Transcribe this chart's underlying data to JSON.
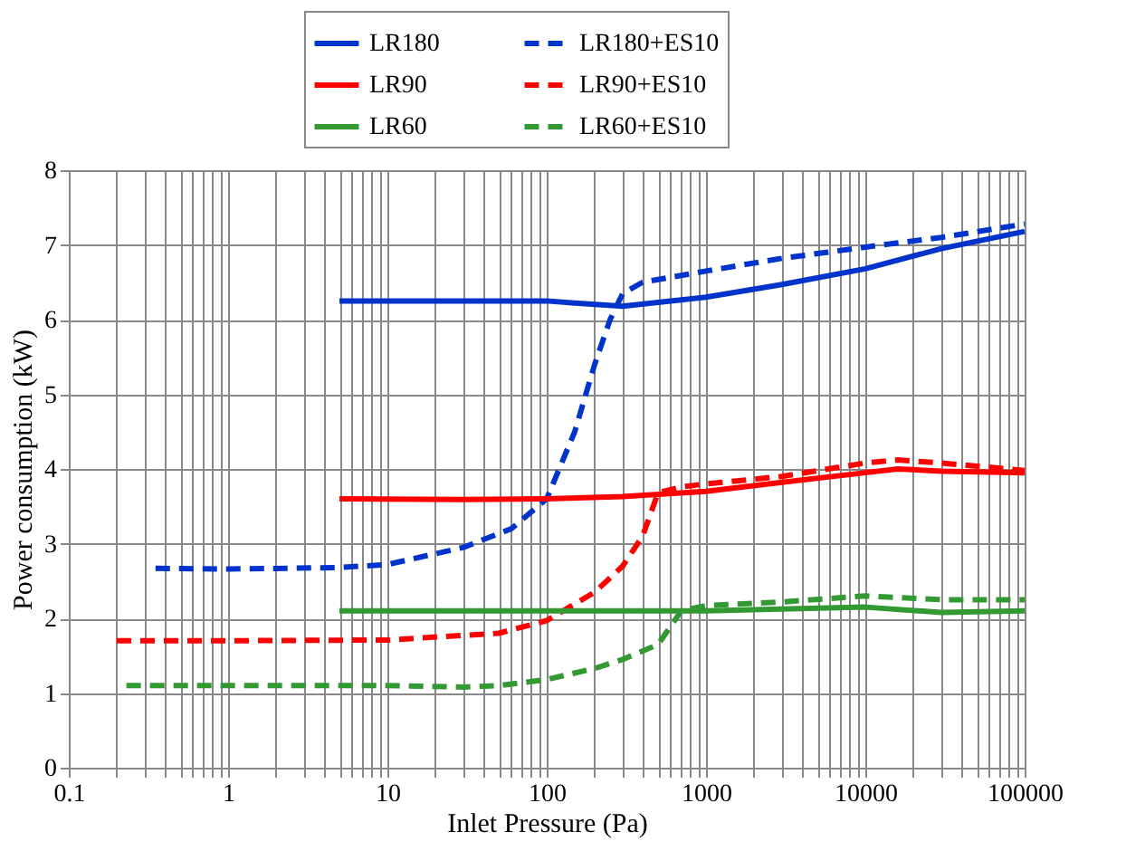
{
  "chart_data": {
    "type": "line",
    "xlabel": "Inlet Pressure (Pa)",
    "ylabel": "Power consumption (kW)",
    "log": "x",
    "grid": true,
    "legend": "top",
    "marker": "none",
    "xlim": [
      0.1,
      100000
    ],
    "ylim": [
      0,
      8
    ],
    "yticks": [
      0,
      1,
      2,
      3,
      4,
      5,
      6,
      7,
      8
    ],
    "xticks": [
      0.1,
      {
        "value": 0.2,
        "label": null
      },
      {
        "value": 0.3,
        "label": null
      },
      {
        "value": 0.4,
        "label": null
      },
      {
        "value": 0.5,
        "label": null
      },
      {
        "value": 0.6,
        "label": null
      },
      {
        "value": 0.7,
        "label": null
      },
      {
        "value": 0.8,
        "label": null
      },
      {
        "value": 0.9,
        "label": null
      },
      1,
      {
        "value": 2,
        "label": null
      },
      {
        "value": 3,
        "label": null
      },
      {
        "value": 4,
        "label": null
      },
      {
        "value": 5,
        "label": null
      },
      {
        "value": 6,
        "label": null
      },
      {
        "value": 7,
        "label": null
      },
      {
        "value": 8,
        "label": null
      },
      {
        "value": 9,
        "label": null
      },
      10,
      {
        "value": 20,
        "label": null
      },
      {
        "value": 30,
        "label": null
      },
      {
        "value": 40,
        "label": null
      },
      {
        "value": 50,
        "label": null
      },
      {
        "value": 60,
        "label": null
      },
      {
        "value": 70,
        "label": null
      },
      {
        "value": 80,
        "label": null
      },
      {
        "value": 90,
        "label": null
      },
      100,
      {
        "value": 200,
        "label": null
      },
      {
        "value": 300,
        "label": null
      },
      {
        "value": 400,
        "label": null
      },
      {
        "value": 500,
        "label": null
      },
      {
        "value": 600,
        "label": null
      },
      {
        "value": 700,
        "label": null
      },
      {
        "value": 800,
        "label": null
      },
      {
        "value": 900,
        "label": null
      },
      1000,
      {
        "value": 2000,
        "label": null
      },
      {
        "value": 3000,
        "label": null
      },
      {
        "value": 4000,
        "label": null
      },
      {
        "value": 5000,
        "label": null
      },
      {
        "value": 6000,
        "label": null
      },
      {
        "value": 7000,
        "label": null
      },
      {
        "value": 8000,
        "label": null
      },
      {
        "value": 9000,
        "label": null
      },
      10000,
      {
        "value": 20000,
        "label": null
      },
      {
        "value": 30000,
        "label": null
      },
      {
        "value": 40000,
        "label": null
      },
      {
        "value": 50000,
        "label": null
      },
      {
        "value": 60000,
        "label": null
      },
      {
        "value": 70000,
        "label": null
      },
      {
        "value": 80000,
        "label": null
      },
      {
        "value": 90000,
        "label": null
      },
      100000
    ],
    "series": [
      {
        "name": "LR180",
        "color": "#0033cc",
        "line_style": "solid",
        "x": [
          5,
          10,
          50,
          100,
          150,
          300,
          1000,
          3000,
          10000,
          30000,
          100000
        ],
        "values": [
          6.25,
          6.25,
          6.25,
          6.25,
          6.22,
          6.18,
          6.3,
          6.47,
          6.68,
          6.95,
          7.18
        ]
      },
      {
        "name": "LR180+ES10",
        "color": "#0033cc",
        "line_style": "dashed",
        "x": [
          0.35,
          1,
          5,
          10,
          30,
          60,
          100,
          150,
          200,
          250,
          300,
          400,
          1000,
          3000,
          10000,
          30000,
          100000
        ],
        "values": [
          2.67,
          2.66,
          2.68,
          2.72,
          2.95,
          3.2,
          3.6,
          4.5,
          5.4,
          6.0,
          6.35,
          6.5,
          6.65,
          6.82,
          6.97,
          7.1,
          7.28
        ]
      },
      {
        "name": "LR90",
        "color": "#ff0000",
        "line_style": "solid",
        "x": [
          5,
          30,
          100,
          300,
          1000,
          3000,
          10000,
          16000,
          30000,
          100000
        ],
        "values": [
          3.6,
          3.59,
          3.6,
          3.63,
          3.7,
          3.82,
          3.95,
          4.0,
          3.97,
          3.95
        ]
      },
      {
        "name": "LR90+ES10",
        "color": "#ff0000",
        "line_style": "dashed",
        "x": [
          0.2,
          1,
          10,
          50,
          100,
          200,
          300,
          400,
          500,
          700,
          1000,
          3000,
          10000,
          16000,
          30000,
          100000
        ],
        "values": [
          1.7,
          1.7,
          1.71,
          1.8,
          1.97,
          2.35,
          2.7,
          3.1,
          3.68,
          3.76,
          3.8,
          3.9,
          4.08,
          4.12,
          4.08,
          3.98
        ]
      },
      {
        "name": "LR60",
        "color": "#339933",
        "line_style": "solid",
        "x": [
          5,
          100,
          1000,
          10000,
          30000,
          100000
        ],
        "values": [
          2.1,
          2.1,
          2.1,
          2.15,
          2.08,
          2.1
        ]
      },
      {
        "name": "LR60+ES10",
        "color": "#339933",
        "line_style": "dashed",
        "x": [
          0.23,
          1,
          10,
          30,
          50,
          100,
          200,
          300,
          500,
          700,
          1000,
          3000,
          10000,
          30000,
          100000
        ],
        "values": [
          1.1,
          1.1,
          1.1,
          1.08,
          1.1,
          1.18,
          1.33,
          1.45,
          1.65,
          2.1,
          2.17,
          2.22,
          2.3,
          2.25,
          2.25
        ]
      }
    ]
  }
}
